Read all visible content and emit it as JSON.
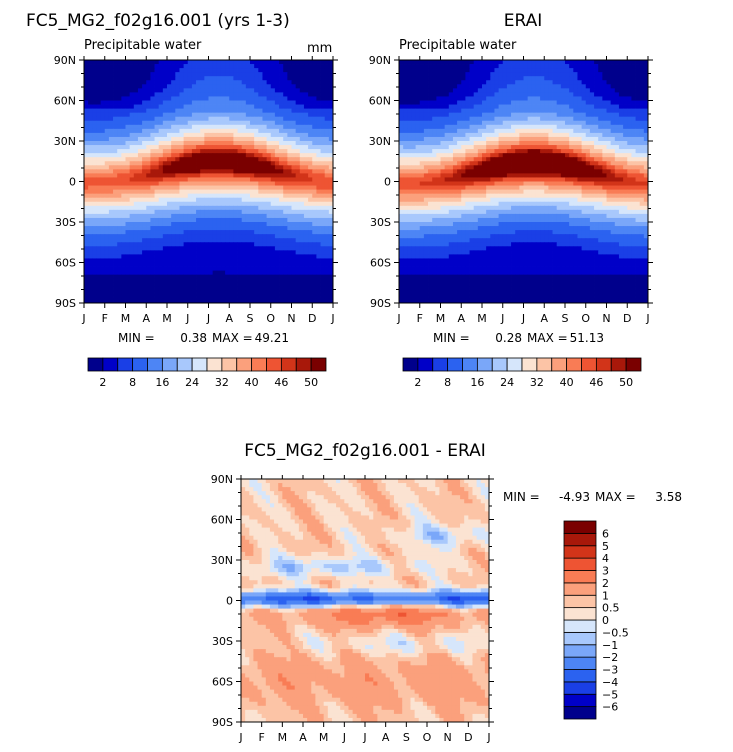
{
  "chart_data": [
    {
      "type": "heatmap",
      "title": "FC5_MG2_f02g16.001 (yrs 1-3)",
      "subtitle": "Precipitable water",
      "units": "mm",
      "x_ticks": [
        "J",
        "F",
        "M",
        "A",
        "M",
        "J",
        "J",
        "A",
        "S",
        "O",
        "N",
        "D",
        "J"
      ],
      "y_ticks": [
        "90N",
        "60N",
        "30N",
        "0",
        "30S",
        "60S",
        "90S"
      ],
      "ylim": [
        -90,
        90
      ],
      "stats": {
        "min_label": "MIN =",
        "min": "0.38",
        "max_label": "MAX =",
        "max": "49.21"
      },
      "colorbar": {
        "orientation": "horizontal",
        "tick_labels": [
          "2",
          "8",
          "16",
          "24",
          "32",
          "40",
          "46",
          "50"
        ],
        "colors": [
          "#00008c",
          "#0000c8",
          "#1a3fe6",
          "#2b62f0",
          "#4d85f5",
          "#7aa7f9",
          "#a8c8fc",
          "#d6e6fb",
          "#fbe3d2",
          "#fcc4a6",
          "#fba07c",
          "#f97c55",
          "#ee5433",
          "#d23419",
          "#a8180a",
          "#7a0000"
        ]
      },
      "field": {
        "peak": 49.21,
        "peak_latitude": 7,
        "peak_month": 7.5
      }
    },
    {
      "type": "heatmap",
      "title": "ERAI",
      "subtitle": "Precipitable water",
      "x_ticks": [
        "J",
        "F",
        "M",
        "A",
        "M",
        "J",
        "J",
        "A",
        "S",
        "O",
        "N",
        "D",
        "J"
      ],
      "y_ticks": [
        "90N",
        "60N",
        "30N",
        "0",
        "30S",
        "60S",
        "90S"
      ],
      "ylim": [
        -90,
        90
      ],
      "stats": {
        "min_label": "MIN =",
        "min": "0.28",
        "max_label": "MAX =",
        "max": "51.13"
      },
      "colorbar": {
        "orientation": "horizontal",
        "tick_labels": [
          "2",
          "8",
          "16",
          "24",
          "32",
          "40",
          "46",
          "50"
        ],
        "colors": [
          "#00008c",
          "#0000c8",
          "#1a3fe6",
          "#2b62f0",
          "#4d85f5",
          "#7aa7f9",
          "#a8c8fc",
          "#d6e6fb",
          "#fbe3d2",
          "#fcc4a6",
          "#fba07c",
          "#f97c55",
          "#ee5433",
          "#d23419",
          "#a8180a",
          "#7a0000"
        ]
      },
      "field": {
        "peak": 51.13,
        "peak_latitude": 6,
        "peak_month": 6.5
      }
    },
    {
      "type": "heatmap",
      "title": "FC5_MG2_f02g16.001 - ERAI",
      "x_ticks": [
        "J",
        "F",
        "M",
        "A",
        "M",
        "J",
        "J",
        "A",
        "S",
        "O",
        "N",
        "D",
        "J"
      ],
      "y_ticks": [
        "90N",
        "60N",
        "30N",
        "0",
        "30S",
        "60S",
        "90S"
      ],
      "ylim": [
        -90,
        90
      ],
      "stats": {
        "min_label": "MIN =",
        "min": "-4.93",
        "max_label": "MAX =",
        "max": "3.58"
      },
      "colorbar": {
        "orientation": "vertical",
        "levels": [
          -6,
          -5,
          -4,
          -3,
          -2,
          -1,
          -0.5,
          0,
          0.5,
          1,
          2,
          3,
          4,
          5,
          6
        ],
        "tick_labels": [
          "-6",
          "-5",
          "-4",
          "-3",
          "-2",
          "-1",
          "-0.5",
          "0",
          "0.5",
          "1",
          "2",
          "3",
          "4",
          "5",
          "6"
        ],
        "colors": [
          "#00008c",
          "#0000c8",
          "#1a3fe6",
          "#2b62f0",
          "#4d85f5",
          "#7aa7f9",
          "#a8c8fc",
          "#d6e6fb",
          "#fbe3d2",
          "#fcc4a6",
          "#fba07c",
          "#f97c55",
          "#ee5433",
          "#d23419",
          "#a8180a",
          "#7a0000"
        ]
      }
    }
  ]
}
